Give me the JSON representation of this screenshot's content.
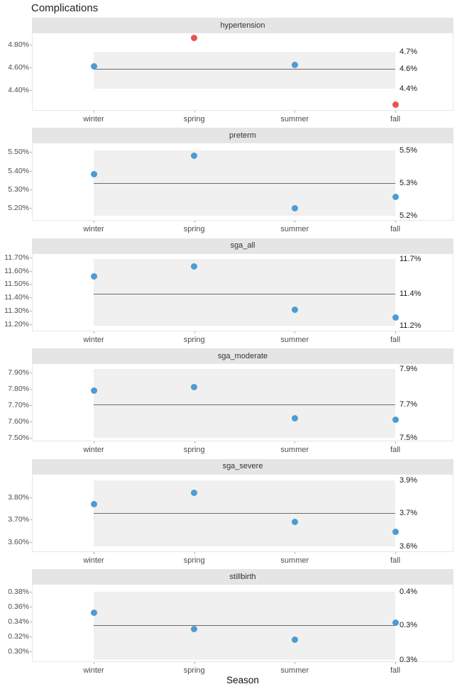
{
  "chart_data": {
    "type": "scatter",
    "title": "Complications",
    "xlabel": "Season",
    "categories": [
      "winter",
      "spring",
      "summer",
      "fall"
    ],
    "legend": "none",
    "grid": "off",
    "colors": {
      "point_blue": "#4d9bd5",
      "point_red": "#e8534e",
      "band_fill": "#f0f0f0",
      "strip_fill": "#e5e5e5",
      "mean_line": "#6b6b6b",
      "panel_border": "#e7e7e7",
      "tick_label": "#4d4d4d",
      "annotation": "#1a1a1a"
    },
    "panels": [
      {
        "facet": "hypertension",
        "ylim": [
          4.219,
          4.906
        ],
        "yticks": [
          {
            "label": "4.80%",
            "value": 4.8
          },
          {
            "label": "4.60%",
            "value": 4.6
          },
          {
            "label": "4.40%",
            "value": 4.4
          }
        ],
        "band": {
          "low": 4.41,
          "high": 4.74,
          "mean": 4.59,
          "labels": {
            "high": "4.7%",
            "mean": "4.6%",
            "low": "4.4%"
          }
        },
        "points": [
          {
            "season": "winter",
            "value": 4.61,
            "color": "blue"
          },
          {
            "season": "spring",
            "value": 4.86,
            "color": "red"
          },
          {
            "season": "summer",
            "value": 4.62,
            "color": "blue"
          },
          {
            "season": "fall",
            "value": 4.27,
            "color": "red"
          }
        ]
      },
      {
        "facet": "preterm",
        "ylim": [
          5.131,
          5.549
        ],
        "yticks": [
          {
            "label": "5.50%",
            "value": 5.5
          },
          {
            "label": "5.40%",
            "value": 5.4
          },
          {
            "label": "5.30%",
            "value": 5.3
          },
          {
            "label": "5.20%",
            "value": 5.2
          }
        ],
        "band": {
          "low": 5.16,
          "high": 5.51,
          "mean": 5.335,
          "labels": {
            "high": "5.5%",
            "mean": "5.3%",
            "low": "5.2%"
          }
        },
        "points": [
          {
            "season": "winter",
            "value": 5.38,
            "color": "blue"
          },
          {
            "season": "spring",
            "value": 5.48,
            "color": "blue"
          },
          {
            "season": "summer",
            "value": 5.2,
            "color": "blue"
          },
          {
            "season": "fall",
            "value": 5.26,
            "color": "blue"
          }
        ]
      },
      {
        "facet": "sga_all",
        "ylim": [
          11.147,
          11.732
        ],
        "yticks": [
          {
            "label": "11.70%",
            "value": 11.7
          },
          {
            "label": "11.60%",
            "value": 11.6
          },
          {
            "label": "11.50%",
            "value": 11.5
          },
          {
            "label": "11.40%",
            "value": 11.4
          },
          {
            "label": "11.30%",
            "value": 11.3
          },
          {
            "label": "11.20%",
            "value": 11.2
          }
        ],
        "band": {
          "low": 11.19,
          "high": 11.69,
          "mean": 11.43,
          "labels": {
            "high": "11.7%",
            "mean": "11.4%",
            "low": "11.2%"
          }
        },
        "points": [
          {
            "season": "winter",
            "value": 11.56,
            "color": "blue"
          },
          {
            "season": "spring",
            "value": 11.63,
            "color": "blue"
          },
          {
            "season": "summer",
            "value": 11.31,
            "color": "blue"
          },
          {
            "season": "fall",
            "value": 11.25,
            "color": "blue"
          }
        ]
      },
      {
        "facet": "sga_moderate",
        "ylim": [
          7.478,
          7.957
        ],
        "yticks": [
          {
            "label": "7.90%",
            "value": 7.9
          },
          {
            "label": "7.80%",
            "value": 7.8
          },
          {
            "label": "7.70%",
            "value": 7.7
          },
          {
            "label": "7.60%",
            "value": 7.6
          },
          {
            "label": "7.50%",
            "value": 7.5
          }
        ],
        "band": {
          "low": 7.5,
          "high": 7.925,
          "mean": 7.705,
          "labels": {
            "high": "7.9%",
            "mean": "7.7%",
            "low": "7.5%"
          }
        },
        "points": [
          {
            "season": "winter",
            "value": 7.79,
            "color": "blue"
          },
          {
            "season": "spring",
            "value": 7.81,
            "color": "blue"
          },
          {
            "season": "summer",
            "value": 7.62,
            "color": "blue"
          },
          {
            "season": "fall",
            "value": 7.61,
            "color": "blue"
          }
        ]
      },
      {
        "facet": "sga_severe",
        "ylim": [
          3.556,
          3.905
        ],
        "yticks": [
          {
            "label": "3.80%",
            "value": 3.8
          },
          {
            "label": "3.70%",
            "value": 3.7
          },
          {
            "label": "3.60%",
            "value": 3.6
          }
        ],
        "band": {
          "low": 3.58,
          "high": 3.875,
          "mean": 3.73,
          "labels": {
            "high": "3.9%",
            "mean": "3.7%",
            "low": "3.6%"
          }
        },
        "points": [
          {
            "season": "winter",
            "value": 3.77,
            "color": "blue"
          },
          {
            "season": "spring",
            "value": 3.82,
            "color": "blue"
          },
          {
            "season": "summer",
            "value": 3.69,
            "color": "blue"
          },
          {
            "season": "fall",
            "value": 3.645,
            "color": "blue"
          }
        ]
      },
      {
        "facet": "stillbirth",
        "ylim": [
          0.2857,
          0.3905
        ],
        "yticks": [
          {
            "label": "0.38%",
            "value": 0.38
          },
          {
            "label": "0.36%",
            "value": 0.36
          },
          {
            "label": "0.34%",
            "value": 0.34
          },
          {
            "label": "0.32%",
            "value": 0.32
          },
          {
            "label": "0.30%",
            "value": 0.3
          }
        ],
        "band": {
          "low": 0.289,
          "high": 0.38,
          "mean": 0.335,
          "labels": {
            "high": "0.4%",
            "mean": "0.3%",
            "low": "0.3%"
          }
        },
        "points": [
          {
            "season": "winter",
            "value": 0.352,
            "color": "blue"
          },
          {
            "season": "spring",
            "value": 0.33,
            "color": "blue"
          },
          {
            "season": "summer",
            "value": 0.316,
            "color": "blue"
          },
          {
            "season": "fall",
            "value": 0.339,
            "color": "blue"
          }
        ]
      }
    ]
  }
}
